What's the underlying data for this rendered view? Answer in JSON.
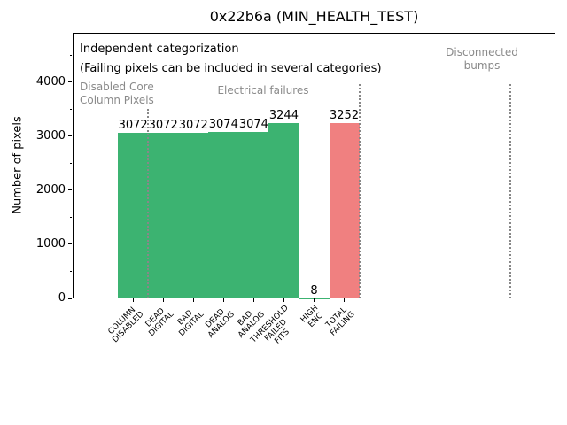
{
  "chart_data": {
    "type": "bar",
    "title": "0x22b6a (MIN_HEALTH_TEST)",
    "ylabel": "Number of pixels",
    "xlabel": "",
    "categories": [
      "COLUMN\nDISABLED",
      "DEAD\nDIGITAL",
      "BAD\nDIGITAL",
      "DEAD\nANALOG",
      "BAD\nANALOG",
      "THRESHOLD\nFAILED\nFITS",
      "HIGH\nENC",
      "TOTAL\nFAILING"
    ],
    "values": [
      3072,
      3072,
      3072,
      3074,
      3074,
      3244,
      8,
      3252
    ],
    "value_labels": [
      "3072",
      "3072",
      "3072",
      "3074",
      "3074",
      "3244",
      "8",
      "3252"
    ],
    "bar_colors": [
      "#3cb371",
      "#3cb371",
      "#3cb371",
      "#3cb371",
      "#3cb371",
      "#3cb371",
      "#3cb371",
      "#f08080"
    ],
    "bar_width": 1.0,
    "yticks": [
      0,
      1000,
      2000,
      3000,
      4000
    ],
    "ytick_labels": [
      "0",
      "1000",
      "2000",
      "3000",
      "4000"
    ],
    "minor_yticks": [
      500,
      1500,
      2500,
      3500,
      4500
    ],
    "ylim": [
      0,
      4918
    ],
    "xlim": [
      -2,
      14
    ],
    "grid": false,
    "legend": null,
    "separators": [
      {
        "x": 0.5,
        "extent": 0.713
      },
      {
        "x": 7.5,
        "extent": 0.807
      },
      {
        "x": 12.5,
        "extent": 0.807
      }
    ],
    "colors": {
      "green_bar": "#3cb371",
      "red_bar": "#f08080",
      "gray_text": "#8a8a8a",
      "separator": "#888888"
    },
    "annotations": {
      "independent": {
        "text": "Independent categorization",
        "color": "black"
      },
      "failing_note": {
        "text": "(Failing pixels can be included in several categories)",
        "color": "black"
      },
      "disabled_core": {
        "text": "Disabled Core\nColumn Pixels",
        "color": "gray"
      },
      "electrical": {
        "text": "Electrical failures",
        "color": "gray"
      },
      "disconnected": {
        "text": "Disconnected\nbumps",
        "color": "gray"
      }
    }
  }
}
